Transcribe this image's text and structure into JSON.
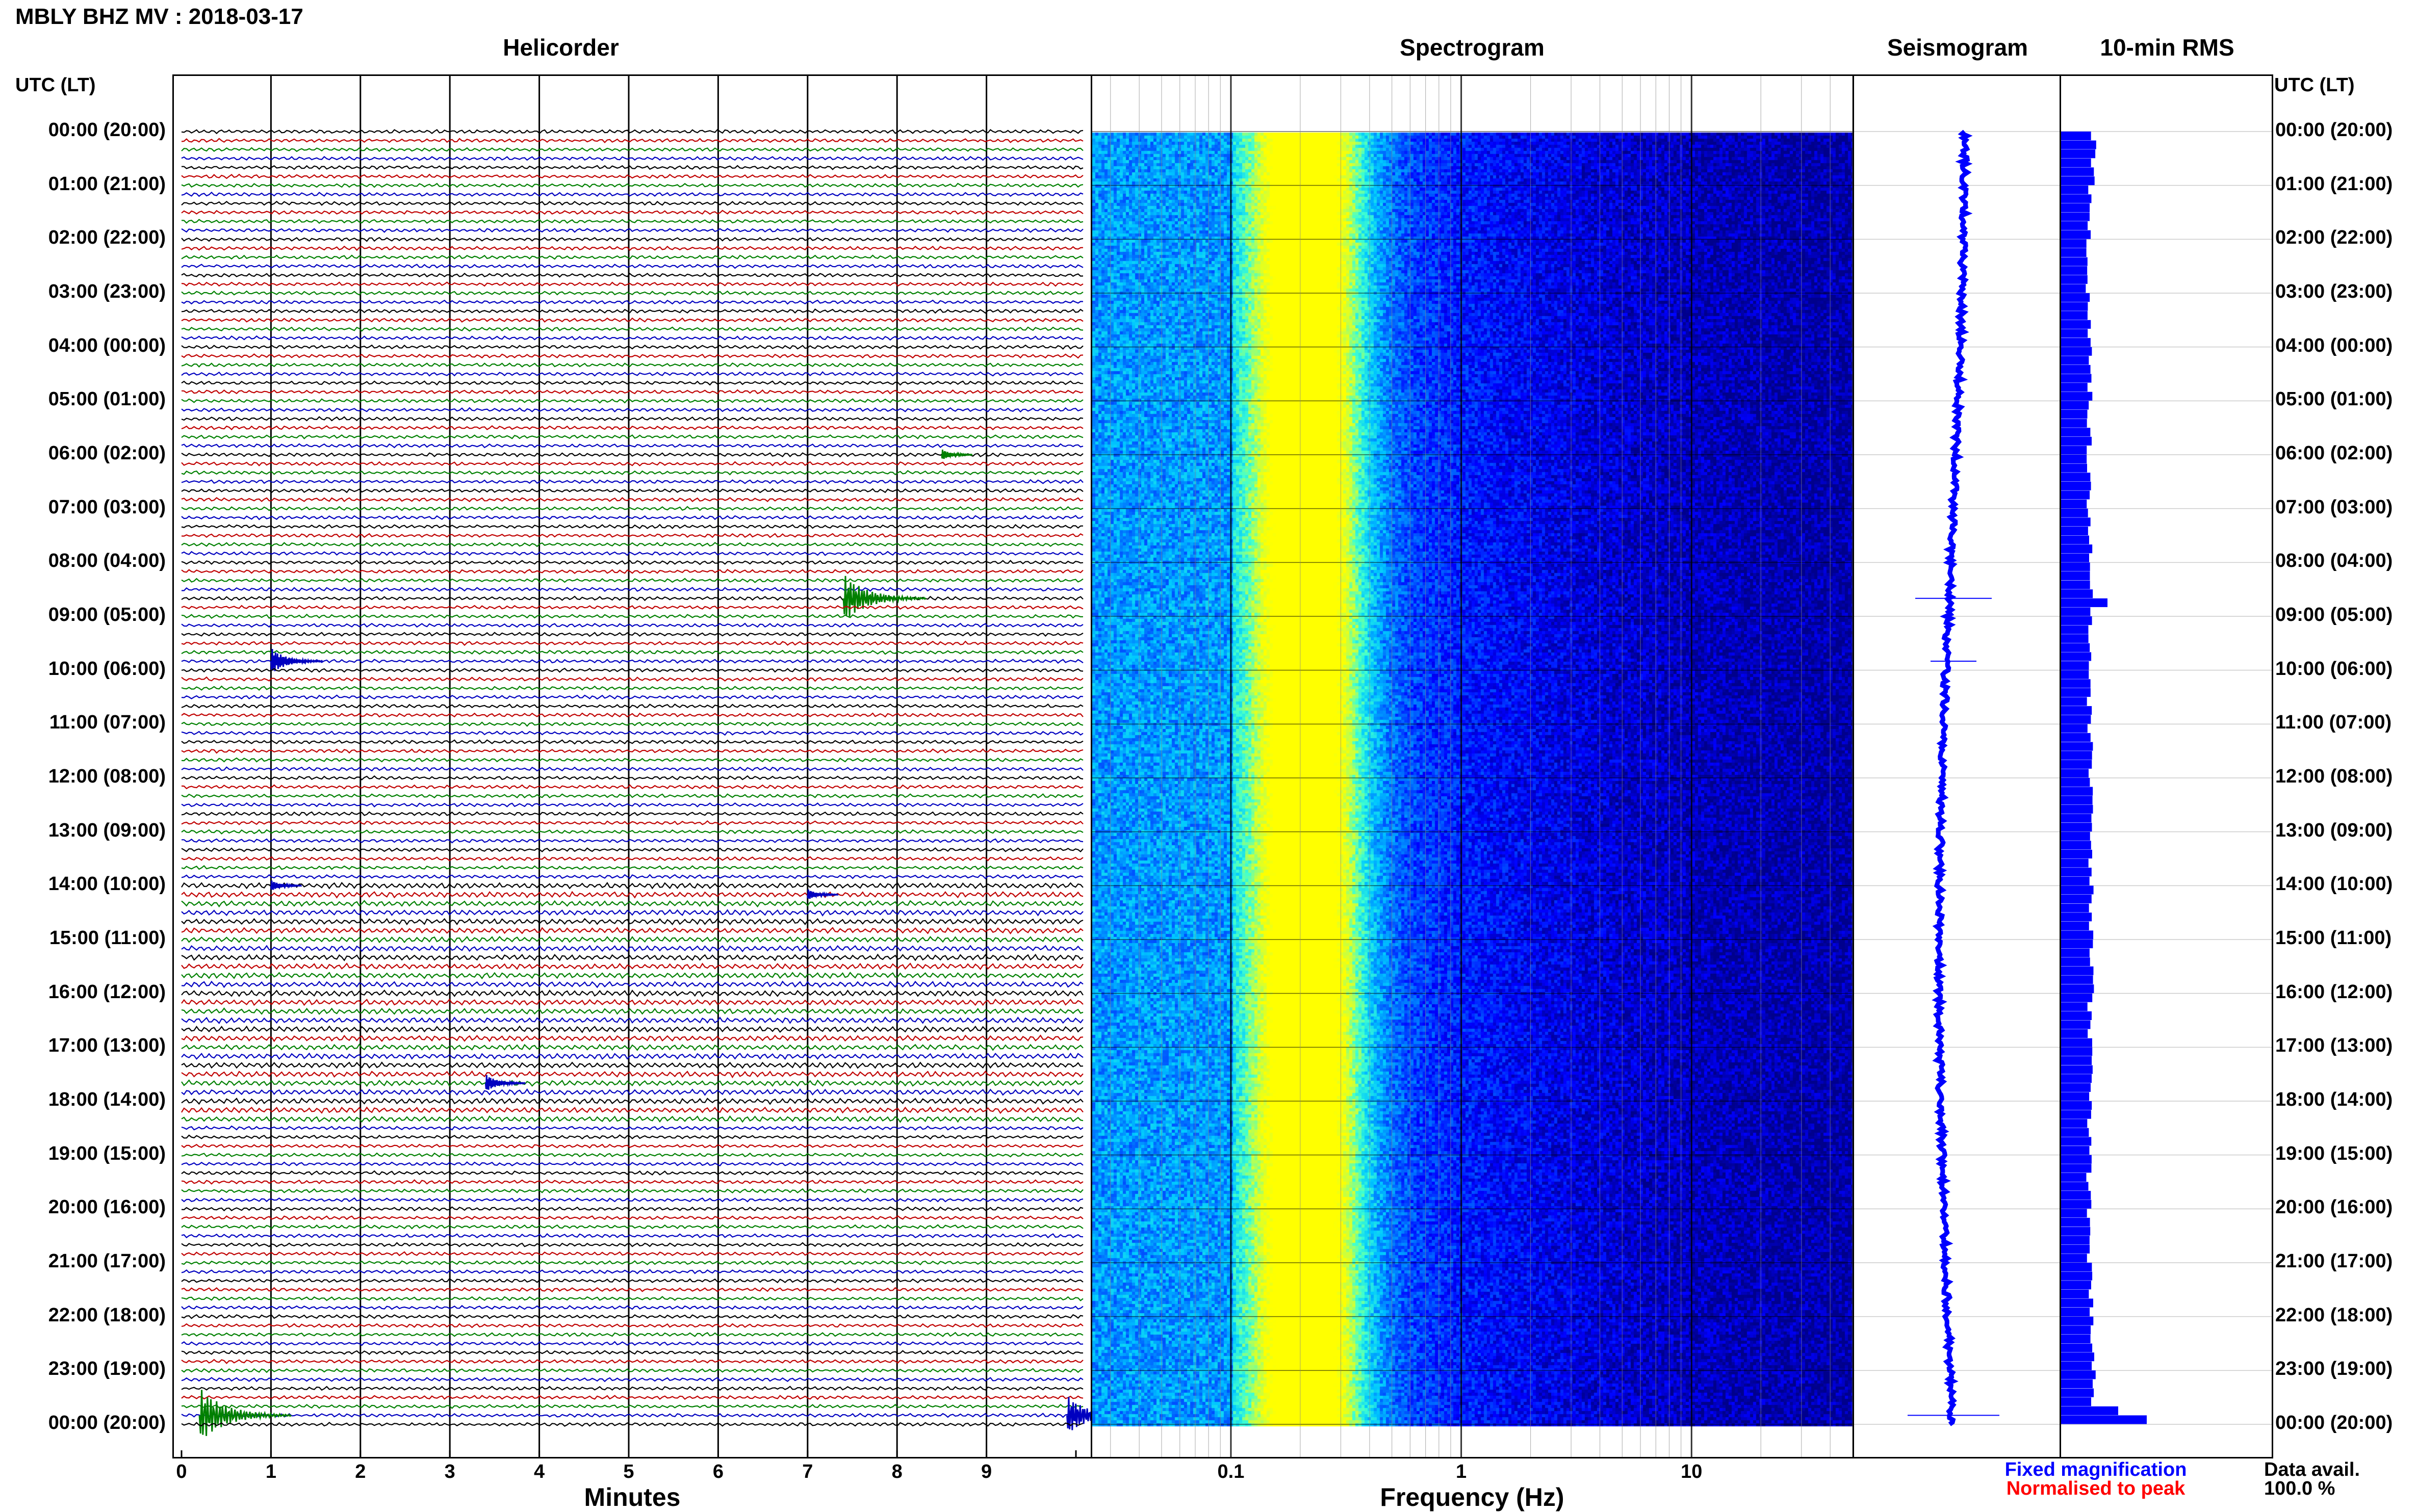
{
  "header": {
    "title": "MBLY BHZ MV : 2018-03-17",
    "time_axis_label": "UTC (LT)"
  },
  "panels": {
    "helicorder": "Helicorder",
    "spectrogram": "Spectrogram",
    "seismogram": "Seismogram",
    "rms": "10-min RMS"
  },
  "legend": {
    "fixed": "Fixed magnification",
    "normalised": "Normalised to peak",
    "fixed_color": "#0000ff",
    "normalised_color": "#ff0000"
  },
  "data_availability": {
    "label": "Data avail.",
    "value": "100.0 %"
  },
  "chart_data": [
    {
      "type": "line",
      "panel": "helicorder",
      "xlabel": "Minutes",
      "x_ticks": [
        "0",
        "1",
        "2",
        "3",
        "4",
        "5",
        "6",
        "7",
        "8",
        "9"
      ],
      "xlim": [
        0,
        10
      ],
      "y_tick_labels": [
        "00:00 (20:00)",
        "01:00 (21:00)",
        "02:00 (22:00)",
        "03:00 (23:00)",
        "04:00 (00:00)",
        "05:00 (01:00)",
        "06:00 (02:00)",
        "07:00 (03:00)",
        "08:00 (04:00)",
        "09:00 (05:00)",
        "10:00 (06:00)",
        "11:00 (07:00)",
        "12:00 (08:00)",
        "13:00 (09:00)",
        "14:00 (10:00)",
        "15:00 (11:00)",
        "16:00 (12:00)",
        "17:00 (13:00)",
        "18:00 (14:00)",
        "19:00 (15:00)",
        "20:00 (16:00)",
        "21:00 (17:00)",
        "22:00 (18:00)",
        "23:00 (19:00)",
        "00:00 (20:00)"
      ],
      "trace_colors": [
        "#000000",
        "#c00000",
        "#008000",
        "#0000c0"
      ],
      "traces_per_hour": 6,
      "events": [
        {
          "row": 36,
          "minute": 8.5,
          "amplitude": 0.5,
          "color": "#008000"
        },
        {
          "row": 52,
          "minute": 7.4,
          "amplitude": 2.2,
          "color": "#008000"
        },
        {
          "row": 59,
          "minute": 1.0,
          "amplitude": 1.2,
          "color": "#0000c0"
        },
        {
          "row": 84,
          "minute": 1.0,
          "amplitude": 0.5,
          "color": "#0000c0"
        },
        {
          "row": 85,
          "minute": 7.0,
          "amplitude": 0.5,
          "color": "#0000c0"
        },
        {
          "row": 106,
          "minute": 3.4,
          "amplitude": 0.8,
          "color": "#0000c0"
        },
        {
          "row": 143,
          "minute": 0.2,
          "amplitude": 2.5,
          "color": "#008000"
        },
        {
          "row": 143,
          "minute": 9.9,
          "amplitude": 1.8,
          "color": "#0000c0"
        }
      ]
    },
    {
      "type": "heatmap",
      "panel": "spectrogram",
      "xlabel": "Frequency (Hz)",
      "x_scale": "log",
      "xlim": [
        0.025,
        50
      ],
      "x_ticks": [
        {
          "value": 0.1,
          "label": "0.1"
        },
        {
          "value": 1,
          "label": "1"
        },
        {
          "value": 10,
          "label": "10"
        }
      ],
      "colormap": [
        "#00008c",
        "#0000ff",
        "#0066ff",
        "#00c8ff",
        "#40ffd0",
        "#c8ff40",
        "#ffff00"
      ],
      "peak_frequency_hz": 0.21
    },
    {
      "type": "line",
      "panel": "seismogram",
      "note_color": "#0000ff"
    },
    {
      "type": "bar",
      "panel": "rms",
      "orientation": "horizontal",
      "color": "#0000ff",
      "rms_by_hour": [
        0.9,
        0.8,
        0.75,
        0.78,
        0.8,
        0.78,
        0.78,
        0.8,
        0.85,
        0.82,
        0.8,
        0.82,
        0.85,
        0.85,
        0.85,
        0.85,
        0.82,
        0.82,
        0.8,
        0.78,
        0.8,
        0.82,
        0.85,
        0.9
      ],
      "spikes": [
        {
          "row": 52,
          "value": 1.3
        },
        {
          "row": 143,
          "value": 2.4
        },
        {
          "row": 142,
          "value": 1.6
        }
      ]
    }
  ]
}
